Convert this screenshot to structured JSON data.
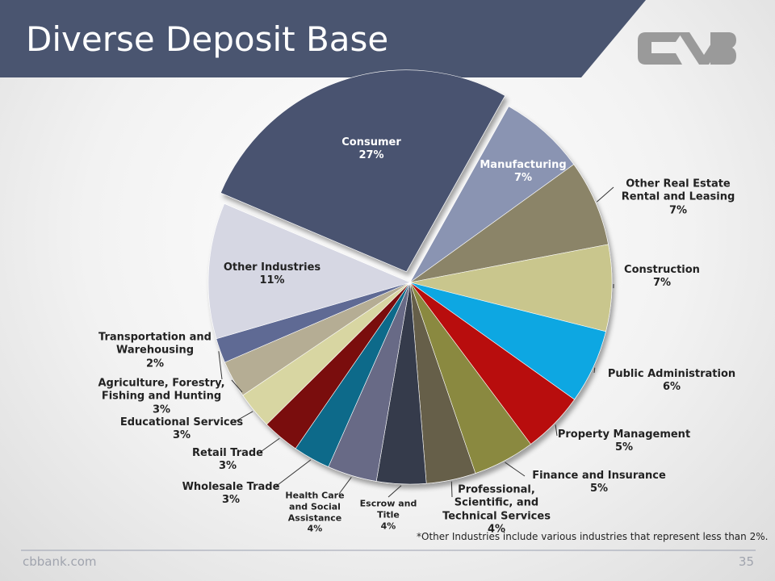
{
  "title": "Diverse Deposit Base",
  "footnote": "*Other Industries include various industries that represent less than 2%.",
  "footer": {
    "site": "cbbank.com",
    "page_number": "35"
  },
  "chart_data": {
    "type": "pie",
    "categories": [
      "Consumer",
      "Manufacturing",
      "Other Real Estate Rental and Leasing",
      "Construction",
      "Public Administration",
      "Property Management",
      "Finance and Insurance",
      "Professional, Scientific, and Technical Services",
      "Escrow and Title",
      "Health Care and Social Assistance",
      "Wholesale Trade",
      "Retail Trade",
      "Educational Services",
      "Agriculture, Forestry, Fishing and Hunting",
      "Transportation and Warehousing",
      "Other Industries"
    ],
    "values": [
      27,
      7,
      7,
      7,
      6,
      5,
      5,
      4,
      4,
      4,
      3,
      3,
      3,
      3,
      2,
      11
    ],
    "value_labels": [
      "27%",
      "7%",
      "7%",
      "7%",
      "6%",
      "5%",
      "5%",
      "4%",
      "4%",
      "4%",
      "3%",
      "3%",
      "3%",
      "3%",
      "2%",
      "11%"
    ],
    "colors": [
      "#4a5370",
      "#8a94b2",
      "#8b8468",
      "#c9c68d",
      "#0ea7e2",
      "#b80c0c",
      "#8a893f",
      "#665e4a",
      "#343a4b",
      "#686a86",
      "#0a6b8a",
      "#7a0a0a",
      "#d8d6a2",
      "#b5ad94",
      "#5e6a94",
      "#d6d7e3"
    ]
  }
}
